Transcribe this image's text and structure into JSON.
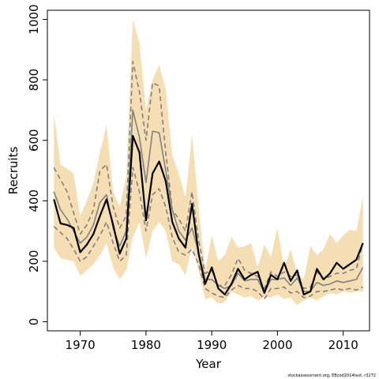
{
  "chart_data": {
    "type": "line",
    "xlabel": "Year",
    "ylabel": "Recruits",
    "footnote": "stockassessment.org, EBcod2014test, r3272",
    "xlim": [
      1965,
      2014
    ],
    "ylim": [
      -30,
      1030
    ],
    "xticks": [
      1970,
      1980,
      1990,
      2000,
      2010
    ],
    "yticks": [
      0,
      200,
      400,
      600,
      800,
      1000
    ],
    "colors": {
      "band": "#f5deb3",
      "estimate": "#000000",
      "retro": "#808080",
      "bounds": "#808080"
    },
    "x": [
      1966,
      1967,
      1968,
      1969,
      1970,
      1971,
      1972,
      1973,
      1974,
      1975,
      1976,
      1977,
      1978,
      1979,
      1980,
      1981,
      1982,
      1983,
      1984,
      1985,
      1986,
      1987,
      1988,
      1989,
      1990,
      1991,
      1992,
      1993,
      1994,
      1995,
      1996,
      1997,
      1998,
      1999,
      2000,
      2001,
      2002,
      2003,
      2004,
      2005,
      2006,
      2007,
      2008,
      2009,
      2010,
      2011,
      2012,
      2013
    ],
    "series": [
      {
        "role": "confidence-band",
        "lower": [
          245,
          210,
          205,
          200,
          150,
          170,
          190,
          220,
          260,
          180,
          140,
          170,
          280,
          330,
          210,
          300,
          330,
          300,
          200,
          190,
          155,
          250,
          170,
          75,
          80,
          60,
          65,
          100,
          90,
          80,
          85,
          70,
          80,
          80,
          90,
          75,
          80,
          55,
          70,
          80,
          70,
          85,
          95,
          90,
          100,
          95,
          100,
          100
        ],
        "upper": [
          690,
          520,
          505,
          490,
          350,
          400,
          460,
          560,
          650,
          430,
          380,
          480,
          1000,
          920,
          700,
          800,
          850,
          770,
          550,
          490,
          410,
          620,
          380,
          170,
          285,
          200,
          220,
          280,
          245,
          250,
          260,
          180,
          255,
          215,
          310,
          180,
          240,
          160,
          140,
          250,
          220,
          240,
          290,
          260,
          285,
          305,
          300,
          415
        ]
      },
      {
        "role": "estimate",
        "values": [
          405,
          325,
          320,
          310,
          230,
          255,
          290,
          350,
          405,
          320,
          225,
          275,
          615,
          560,
          335,
          490,
          530,
          465,
          330,
          275,
          245,
          390,
          225,
          125,
          180,
          110,
          90,
          125,
          175,
          140,
          155,
          165,
          95,
          155,
          140,
          195,
          135,
          170,
          90,
          100,
          175,
          140,
          160,
          195,
          175,
          190,
          205,
          260
        ]
      },
      {
        "role": "retrospective",
        "values": [
          430,
          370,
          340,
          300,
          260,
          280,
          320,
          395,
          420,
          310,
          250,
          300,
          700,
          610,
          460,
          630,
          625,
          500,
          370,
          300,
          270,
          310,
          230,
          140,
          140,
          120,
          110,
          120,
          160,
          135,
          140,
          140,
          95,
          140,
          140,
          145,
          120,
          145,
          100,
          100,
          130,
          120,
          125,
          135,
          130,
          135,
          140,
          180
        ]
      },
      {
        "role": "upper-bound",
        "values": [
          510,
          470,
          430,
          360,
          290,
          320,
          370,
          500,
          520,
          380,
          310,
          350,
          860,
          760,
          600,
          790,
          780,
          560,
          370,
          340,
          300,
          430,
          270,
          160,
          170,
          120,
          120,
          155,
          210,
          170,
          160,
          150,
          110,
          165,
          150,
          165,
          150,
          155,
          110,
          115,
          165,
          140,
          150,
          160,
          160,
          170,
          175,
          260
        ]
      },
      {
        "role": "lower-bound",
        "values": [
          315,
          295,
          275,
          240,
          200,
          215,
          250,
          285,
          330,
          260,
          200,
          220,
          510,
          430,
          300,
          420,
          440,
          380,
          280,
          230,
          220,
          240,
          190,
          110,
          95,
          85,
          80,
          105,
          120,
          110,
          110,
          100,
          75,
          110,
          110,
          115,
          95,
          100,
          80,
          85,
          100,
          100,
          105,
          110,
          105,
          110,
          105,
          115
        ]
      }
    ]
  }
}
